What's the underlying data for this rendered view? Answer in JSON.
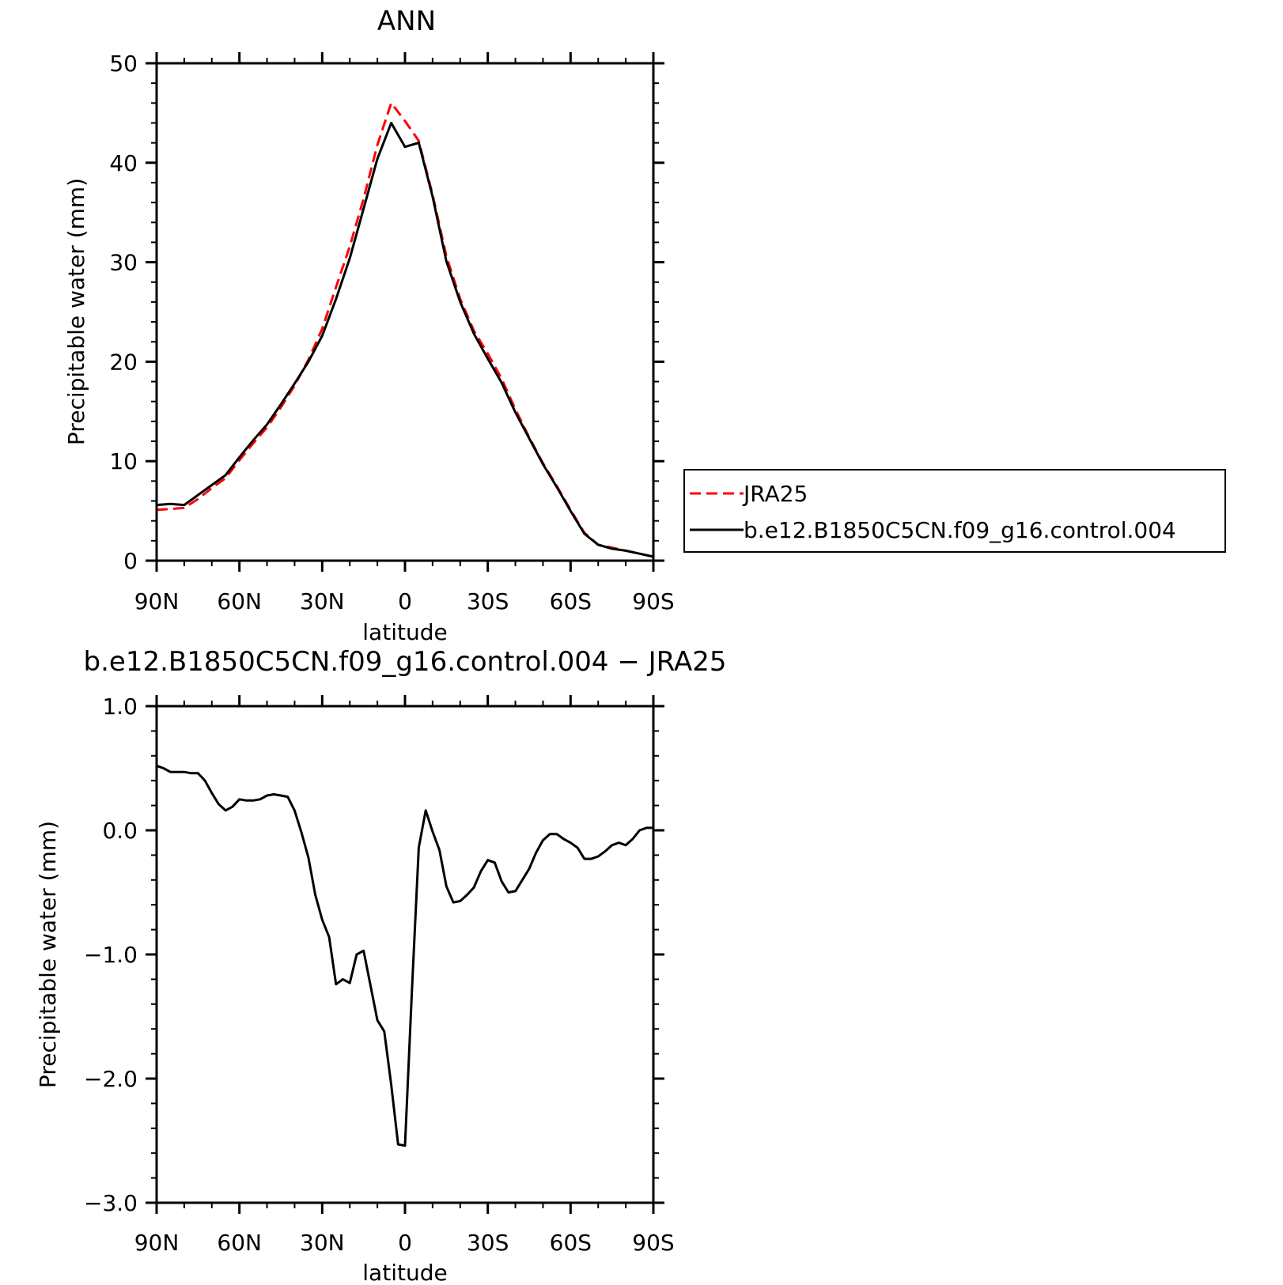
{
  "chart_data": [
    {
      "type": "line",
      "title": "ANN",
      "xlabel": "latitude",
      "ylabel": "Precipitable water (mm)",
      "xlim": [
        90,
        -90
      ],
      "ylim": [
        0,
        50
      ],
      "xticks": [
        90,
        60,
        30,
        0,
        -30,
        -60,
        -90
      ],
      "xtick_labels": [
        "90N",
        "60N",
        "30N",
        "0",
        "30S",
        "60S",
        "90S"
      ],
      "yticks": [
        0,
        10,
        20,
        30,
        40,
        50
      ],
      "ytick_labels": [
        "0",
        "10",
        "20",
        "30",
        "40",
        "50"
      ],
      "legend": {
        "placement": "right",
        "entries": [
          "JRA25",
          "b.e12.B1850C5CN.f09_g16.control.004"
        ]
      },
      "series": [
        {
          "name": "JRA25",
          "color": "#ff0000",
          "dash": "dashed",
          "x": [
            90,
            85,
            80,
            75,
            70,
            65,
            60,
            55,
            50,
            45,
            40,
            35,
            30,
            25,
            20,
            15,
            10,
            5,
            0,
            -5,
            -10,
            -15,
            -20,
            -25,
            -30,
            -35,
            -40,
            -45,
            -50,
            -55,
            -60,
            -65,
            -70,
            -75,
            -80,
            -85,
            -90
          ],
          "y": [
            5.1,
            5.2,
            5.3,
            6.2,
            7.3,
            8.3,
            10.1,
            11.8,
            13.4,
            15.4,
            17.6,
            20.2,
            23.3,
            27.5,
            31.6,
            36.4,
            41.8,
            46.0,
            44.2,
            42.2,
            36.8,
            30.6,
            26.3,
            23.1,
            20.8,
            18.3,
            15.2,
            12.4,
            9.8,
            7.5,
            5.1,
            2.8,
            1.6,
            1.3,
            1.0,
            0.7,
            0.4
          ]
        },
        {
          "name": "b.e12.B1850C5CN.f09_g16.control.004",
          "color": "#000000",
          "dash": "solid",
          "x": [
            90,
            85,
            80,
            75,
            70,
            65,
            60,
            55,
            50,
            45,
            40,
            35,
            30,
            25,
            20,
            15,
            10,
            5,
            0,
            -5,
            -10,
            -15,
            -20,
            -25,
            -30,
            -35,
            -40,
            -45,
            -50,
            -55,
            -60,
            -65,
            -70,
            -75,
            -80,
            -85,
            -90
          ],
          "y": [
            5.6,
            5.7,
            5.6,
            6.6,
            7.6,
            8.6,
            10.4,
            12.1,
            13.7,
            15.7,
            17.8,
            20.0,
            22.6,
            26.3,
            30.4,
            35.4,
            40.4,
            44.0,
            41.6,
            42.0,
            36.6,
            30.1,
            26.0,
            22.8,
            20.3,
            17.9,
            14.9,
            12.3,
            9.7,
            7.4,
            5.0,
            2.7,
            1.6,
            1.2,
            1.0,
            0.7,
            0.4
          ]
        }
      ]
    },
    {
      "type": "line",
      "title": "b.e12.B1850C5CN.f09_g16.control.004 − JRA25",
      "xlabel": "latitude",
      "ylabel": "Precipitable water (mm)",
      "xlim": [
        90,
        -90
      ],
      "ylim": [
        -3,
        1
      ],
      "xticks": [
        90,
        60,
        30,
        0,
        -30,
        -60,
        -90
      ],
      "xtick_labels": [
        "90N",
        "60N",
        "30N",
        "0",
        "30S",
        "60S",
        "90S"
      ],
      "yticks": [
        -3,
        -2,
        -1,
        0,
        1
      ],
      "ytick_labels": [
        "−3.0",
        "−2.0",
        "−1.0",
        "0.0",
        "1.0"
      ],
      "series": [
        {
          "color": "#000000",
          "dash": "solid",
          "x": [
            90,
            87.5,
            85,
            82.5,
            80,
            77.5,
            75,
            72.5,
            70,
            67.5,
            65,
            62.5,
            60,
            57.5,
            55,
            52.5,
            50,
            47.5,
            45,
            42.5,
            40,
            37.5,
            35,
            32.5,
            30,
            27.5,
            25,
            22.5,
            20,
            17.5,
            15,
            12.5,
            10,
            7.5,
            5,
            2.5,
            0,
            -2.5,
            -5,
            -7.5,
            -10,
            -12.5,
            -15,
            -17.5,
            -20,
            -22.5,
            -25,
            -27.5,
            -30,
            -32.5,
            -35,
            -37.5,
            -40,
            -42.5,
            -45,
            -47.5,
            -50,
            -52.5,
            -55,
            -57.5,
            -60,
            -62.5,
            -65,
            -67.5,
            -70,
            -72.5,
            -75,
            -77.5,
            -80,
            -82.5,
            -85,
            -87.5,
            -90
          ],
          "y": [
            0.52,
            0.5,
            0.47,
            0.47,
            0.47,
            0.46,
            0.46,
            0.4,
            0.3,
            0.21,
            0.16,
            0.19,
            0.25,
            0.24,
            0.24,
            0.25,
            0.28,
            0.29,
            0.28,
            0.27,
            0.16,
            -0.02,
            -0.22,
            -0.52,
            -0.72,
            -0.86,
            -1.24,
            -1.2,
            -1.23,
            -1.0,
            -0.97,
            -1.25,
            -1.53,
            -1.62,
            -2.05,
            -2.53,
            -2.54,
            -1.3,
            -0.14,
            0.16,
            -0.01,
            -0.16,
            -0.45,
            -0.58,
            -0.57,
            -0.52,
            -0.46,
            -0.33,
            -0.24,
            -0.26,
            -0.41,
            -0.5,
            -0.49,
            -0.4,
            -0.31,
            -0.18,
            -0.08,
            -0.03,
            -0.03,
            -0.07,
            -0.1,
            -0.14,
            -0.23,
            -0.23,
            -0.21,
            -0.17,
            -0.12,
            -0.1,
            -0.12,
            -0.07,
            0.0,
            0.02,
            0.02
          ]
        }
      ]
    }
  ]
}
